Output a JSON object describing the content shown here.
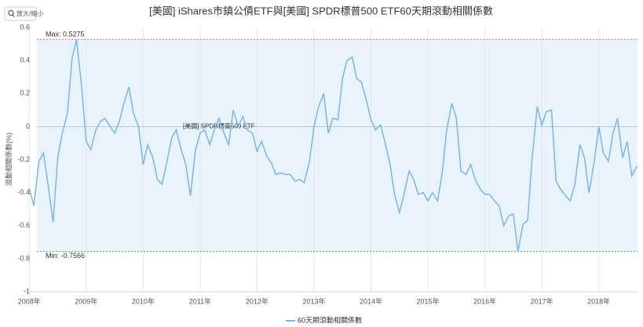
{
  "ui": {
    "zoom_button": "放大/縮小"
  },
  "chart_data": {
    "type": "line",
    "title": "[美國] iShares市鎮公債ETF與[美國] SPDR標普500 ETF60天期滾動相關係數",
    "ylabel": "滾動相關係數(%)",
    "series_annotation": "[美國] SPDR標普500  ETF",
    "max": {
      "value": 0.5275,
      "label": "Max: 0.5275",
      "color": "#e06666"
    },
    "min": {
      "value": -0.7566,
      "label": "Min: -0.7566",
      "color": "#3c9a5f"
    },
    "band_color": "#e8f3fc",
    "grid": "x",
    "xlim": [
      2007.9,
      2018.68
    ],
    "ylim": [
      -1,
      0.6
    ],
    "xticks": [
      {
        "value": 2008,
        "label": "2008年"
      },
      {
        "value": 2009,
        "label": "2009年"
      },
      {
        "value": 2010,
        "label": "2010年"
      },
      {
        "value": 2011,
        "label": "2011年"
      },
      {
        "value": 2012,
        "label": "2012年"
      },
      {
        "value": 2013,
        "label": "2013年"
      },
      {
        "value": 2014,
        "label": "2014年"
      },
      {
        "value": 2015,
        "label": "2015年"
      },
      {
        "value": 2016,
        "label": "2016年"
      },
      {
        "value": 2017,
        "label": "2017年"
      },
      {
        "value": 2018,
        "label": "2018年"
      }
    ],
    "yticks": [
      0.6,
      0.4,
      0.2,
      0,
      -0.2,
      -0.4,
      -0.6,
      -0.8,
      -1
    ],
    "x": [
      2008.0,
      2008.08,
      2008.17,
      2008.25,
      2008.33,
      2008.42,
      2008.5,
      2008.58,
      2008.67,
      2008.75,
      2008.83,
      2008.92,
      2009.0,
      2009.08,
      2009.17,
      2009.25,
      2009.33,
      2009.42,
      2009.5,
      2009.58,
      2009.67,
      2009.75,
      2009.83,
      2009.92,
      2010.0,
      2010.08,
      2010.17,
      2010.25,
      2010.33,
      2010.42,
      2010.5,
      2010.58,
      2010.67,
      2010.75,
      2010.83,
      2010.92,
      2011.0,
      2011.08,
      2011.17,
      2011.25,
      2011.33,
      2011.42,
      2011.5,
      2011.58,
      2011.67,
      2011.75,
      2011.83,
      2011.92,
      2012.0,
      2012.08,
      2012.17,
      2012.25,
      2012.33,
      2012.42,
      2012.5,
      2012.58,
      2012.67,
      2012.75,
      2012.83,
      2012.92,
      2013.0,
      2013.08,
      2013.17,
      2013.25,
      2013.33,
      2013.42,
      2013.5,
      2013.58,
      2013.67,
      2013.75,
      2013.83,
      2013.92,
      2014.0,
      2014.08,
      2014.17,
      2014.25,
      2014.33,
      2014.42,
      2014.5,
      2014.58,
      2014.67,
      2014.75,
      2014.83,
      2014.92,
      2015.0,
      2015.08,
      2015.17,
      2015.25,
      2015.33,
      2015.42,
      2015.5,
      2015.58,
      2015.67,
      2015.75,
      2015.83,
      2015.92,
      2016.0,
      2016.08,
      2016.17,
      2016.25,
      2016.33,
      2016.42,
      2016.5,
      2016.58,
      2016.67,
      2016.75,
      2016.83,
      2016.92,
      2017.0,
      2017.08,
      2017.17,
      2017.25,
      2017.33,
      2017.42,
      2017.5,
      2017.58,
      2017.67,
      2017.75,
      2017.83,
      2017.92,
      2018.0,
      2018.08,
      2018.17,
      2018.25,
      2018.33,
      2018.42,
      2018.5,
      2018.58,
      2018.67
    ],
    "series": [
      {
        "name": "60天期滾動相關係數",
        "color": "#7cb5ec",
        "values": [
          -0.375,
          -0.48,
          -0.21,
          -0.16,
          -0.35,
          -0.58,
          -0.19,
          -0.04,
          0.08,
          0.41,
          0.5275,
          0.24,
          -0.09,
          -0.14,
          -0.02,
          0.03,
          0.05,
          0.0,
          -0.04,
          0.03,
          0.15,
          0.24,
          0.08,
          0.0,
          -0.23,
          -0.11,
          -0.19,
          -0.32,
          -0.35,
          -0.21,
          -0.07,
          -0.02,
          -0.14,
          -0.23,
          -0.42,
          -0.14,
          -0.04,
          -0.02,
          -0.11,
          -0.02,
          0.05,
          -0.04,
          -0.11,
          0.1,
          0.0,
          0.06,
          -0.02,
          -0.04,
          -0.15,
          -0.09,
          -0.18,
          -0.22,
          -0.29,
          -0.28,
          -0.29,
          -0.29,
          -0.33,
          -0.32,
          -0.34,
          -0.21,
          0.0,
          0.12,
          0.2,
          -0.04,
          0.05,
          0.04,
          0.29,
          0.4,
          0.42,
          0.29,
          0.27,
          0.16,
          0.04,
          -0.02,
          0.01,
          -0.1,
          -0.22,
          -0.42,
          -0.52,
          -0.41,
          -0.27,
          -0.32,
          -0.41,
          -0.4,
          -0.45,
          -0.4,
          -0.45,
          -0.28,
          -0.02,
          0.14,
          0.05,
          -0.27,
          -0.29,
          -0.23,
          -0.32,
          -0.38,
          -0.41,
          -0.41,
          -0.45,
          -0.48,
          -0.6,
          -0.54,
          -0.53,
          -0.7566,
          -0.59,
          -0.57,
          -0.19,
          0.12,
          0.01,
          0.09,
          0.1,
          -0.33,
          -0.38,
          -0.42,
          -0.45,
          -0.35,
          -0.11,
          -0.19,
          -0.4,
          -0.21,
          0.0,
          -0.16,
          -0.21,
          -0.04,
          0.05,
          -0.19,
          -0.09,
          -0.3,
          -0.24
        ]
      }
    ]
  }
}
